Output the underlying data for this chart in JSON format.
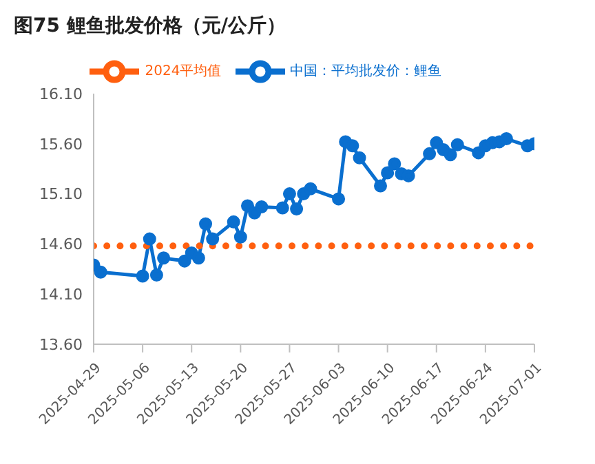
{
  "chart_data": {
    "type": "line",
    "title": "图75 鲤鱼批发价格（元/公斤）",
    "x": [
      "2025-04-29",
      "2025-04-30",
      "2025-05-06",
      "2025-05-07",
      "2025-05-08",
      "2025-05-09",
      "2025-05-12",
      "2025-05-13",
      "2025-05-14",
      "2025-05-15",
      "2025-05-16",
      "2025-05-19",
      "2025-05-20",
      "2025-05-21",
      "2025-05-22",
      "2025-05-23",
      "2025-05-26",
      "2025-05-27",
      "2025-05-28",
      "2025-05-29",
      "2025-05-30",
      "2025-06-03",
      "2025-06-04",
      "2025-06-05",
      "2025-06-06",
      "2025-06-09",
      "2025-06-10",
      "2025-06-11",
      "2025-06-12",
      "2025-06-13",
      "2025-06-16",
      "2025-06-17",
      "2025-06-18",
      "2025-06-19",
      "2025-06-20",
      "2025-06-23",
      "2025-06-24",
      "2025-06-25",
      "2025-06-26",
      "2025-06-27",
      "2025-06-30",
      "2025-07-01"
    ],
    "series": [
      {
        "name": "中国：平均批发价：鲤鱼",
        "color": "#0a6fcf",
        "marker": "circle",
        "line_style": "solid",
        "values": [
          14.39,
          14.32,
          14.28,
          14.65,
          14.29,
          14.46,
          14.43,
          14.51,
          14.46,
          14.8,
          14.65,
          14.82,
          14.67,
          14.98,
          14.91,
          14.97,
          14.96,
          15.1,
          14.95,
          15.1,
          15.15,
          15.05,
          15.62,
          15.58,
          15.46,
          15.18,
          15.31,
          15.4,
          15.3,
          15.28,
          15.5,
          15.61,
          15.54,
          15.49,
          15.59,
          15.51,
          15.58,
          15.61,
          15.62,
          15.65,
          15.58,
          15.6
        ]
      },
      {
        "name": "2024平均值",
        "color": "#ff5f0f",
        "marker": "none",
        "line_style": "dotted",
        "x": [
          "2025-04-29",
          "2025-07-01"
        ],
        "values": [
          14.58,
          14.58
        ]
      }
    ],
    "xlim": [
      "2025-04-29",
      "2025-07-01"
    ],
    "xticks": [
      "2025-04-29",
      "2025-05-06",
      "2025-05-13",
      "2025-05-20",
      "2025-05-27",
      "2025-06-03",
      "2025-06-10",
      "2025-06-17",
      "2025-06-24",
      "2025-07-01"
    ],
    "ylim": [
      13.6,
      16.1
    ],
    "yticks": [
      {
        "value": 13.6,
        "label": "13.60"
      },
      {
        "value": 14.1,
        "label": "14.10"
      },
      {
        "value": 14.6,
        "label": "14.60"
      },
      {
        "value": 15.1,
        "label": "15.10"
      },
      {
        "value": 15.6,
        "label": "15.60"
      },
      {
        "value": 16.1,
        "label": "16.10"
      }
    ],
    "grid": false,
    "legend": "top"
  }
}
